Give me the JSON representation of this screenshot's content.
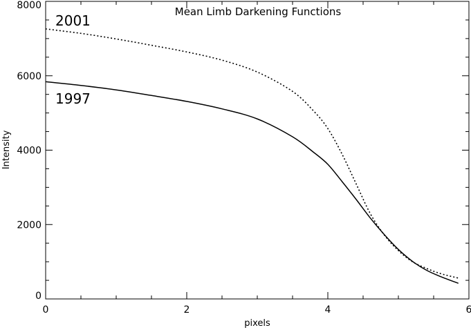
{
  "chart_data": {
    "type": "line",
    "title": "Mean Limb Darkening Functions",
    "xlabel": "pixels",
    "ylabel": "Intensity",
    "xlim": [
      0,
      6
    ],
    "ylim": [
      0,
      8000
    ],
    "x_ticks": [
      0,
      2,
      4,
      6
    ],
    "x_tick_labels": [
      "0",
      "2",
      "4",
      "6"
    ],
    "y_ticks": [
      0,
      2000,
      4000,
      6000,
      8000
    ],
    "y_tick_labels": [
      "0",
      "2000",
      "4000",
      "6000",
      "8000"
    ],
    "grid": false,
    "series": [
      {
        "name": "2001",
        "style": "dotted",
        "color": "#000000",
        "x": [
          0,
          0.5,
          1,
          1.5,
          2,
          2.5,
          3,
          3.5,
          3.8,
          4,
          4.2,
          4.4,
          4.6,
          4.8,
          5,
          5.2,
          5.4,
          5.6,
          5.85
        ],
        "y": [
          7260,
          7140,
          6990,
          6820,
          6640,
          6420,
          6100,
          5580,
          5050,
          4580,
          3900,
          3100,
          2300,
          1720,
          1300,
          1000,
          820,
          680,
          560
        ]
      },
      {
        "name": "1997",
        "style": "solid",
        "color": "#000000",
        "x": [
          0,
          0.5,
          1,
          1.5,
          2,
          2.5,
          3,
          3.5,
          3.8,
          4,
          4.2,
          4.4,
          4.6,
          4.8,
          5,
          5.2,
          5.4,
          5.6,
          5.85
        ],
        "y": [
          5840,
          5740,
          5620,
          5470,
          5310,
          5110,
          4840,
          4360,
          3940,
          3620,
          3160,
          2680,
          2180,
          1730,
          1330,
          1010,
          770,
          600,
          420
        ]
      }
    ]
  }
}
